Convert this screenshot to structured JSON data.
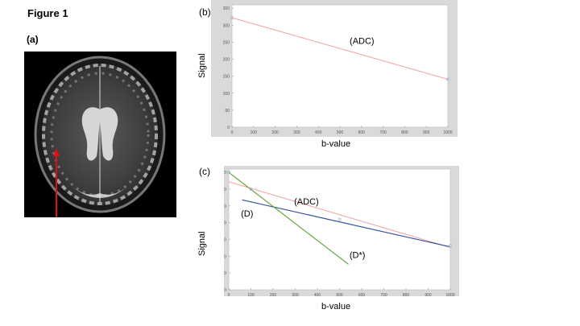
{
  "figure_title": "Figure 1",
  "panels": {
    "a": {
      "label": "(a)"
    },
    "b": {
      "label": "(b)",
      "xlabel": "b-value",
      "ylabel": "Signal",
      "annotation": "(ADC)"
    },
    "c": {
      "label": "(c)",
      "xlabel": "b-value",
      "ylabel": "Signal",
      "annotations": {
        "adc": "(ADC)",
        "d": "(D)",
        "dstar": "(D*)"
      }
    }
  },
  "colors": {
    "adc": "#f0a8a8",
    "d": "#2f4f9a",
    "dstar": "#5aa02c",
    "marker": "#aab8e0",
    "arrow": "#e0101a"
  },
  "chart_data": [
    {
      "panel": "b",
      "type": "line",
      "xlim": [
        0,
        1000
      ],
      "ylim": [
        0,
        360
      ],
      "x_ticks": [
        0,
        100,
        200,
        300,
        400,
        500,
        600,
        700,
        800,
        900,
        1000
      ],
      "y_ticks": [
        0,
        50,
        100,
        150,
        200,
        250,
        300,
        350
      ],
      "series": [
        {
          "x": [
            0,
            1000
          ],
          "y": [
            322,
            141
          ]
        }
      ],
      "points": {
        "x": [
          0,
          1000
        ],
        "y": [
          322,
          141
        ]
      }
    },
    {
      "panel": "c",
      "type": "line",
      "xlim": [
        0,
        1000
      ],
      "ylim": [
        0,
        360
      ],
      "x_ticks": [
        0,
        100,
        200,
        300,
        400,
        500,
        600,
        700,
        800,
        900,
        1000
      ],
      "y_ticks": [
        0,
        50,
        100,
        150,
        200,
        250,
        300,
        350
      ],
      "series": [
        {
          "x": [
            0,
            1000
          ],
          "y": [
            322,
            126
          ]
        },
        {
          "x": [
            60,
            1000
          ],
          "y": [
            268,
            128
          ]
        },
        {
          "x": [
            0,
            540
          ],
          "y": [
            350,
            76
          ]
        }
      ],
      "points": {
        "x": [
          0,
          100,
          500,
          1000
        ],
        "y": [
          350,
          300,
          210,
          131
        ]
      }
    }
  ]
}
